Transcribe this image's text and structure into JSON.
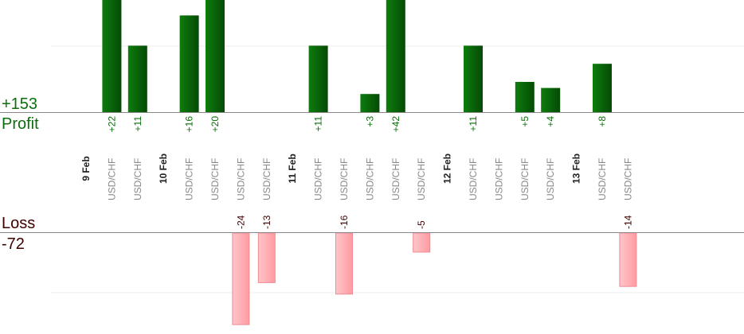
{
  "summary": {
    "profit_total": "+153",
    "profit_label": "Profit",
    "loss_label": "Loss",
    "loss_total": "-72"
  },
  "colors": {
    "profit_bar": "#0a6a0a",
    "profit_text": "#0b6e0b",
    "loss_bar": "#ffb3b8",
    "loss_text": "#3d0000",
    "axis": "#888888",
    "grid": "#eeeeee",
    "tick_text": "#888888",
    "date_text": "#222222"
  },
  "chart_data": {
    "type": "bar",
    "profit_ylim": [
      0,
      27
    ],
    "loss_ylim": [
      0,
      24
    ],
    "categories": [
      {
        "label": "9 Feb",
        "kind": "date"
      },
      {
        "label": "USD/CHF",
        "kind": "trade",
        "value": 22
      },
      {
        "label": "USD/CHF",
        "kind": "trade",
        "value": 11
      },
      {
        "label": "10 Feb",
        "kind": "date"
      },
      {
        "label": "USD/CHF",
        "kind": "trade",
        "value": 16
      },
      {
        "label": "USD/CHF",
        "kind": "trade",
        "value": 20
      },
      {
        "label": "USD/CHF",
        "kind": "trade",
        "value": -24
      },
      {
        "label": "USD/CHF",
        "kind": "trade",
        "value": -13
      },
      {
        "label": "11 Feb",
        "kind": "date"
      },
      {
        "label": "USD/CHF",
        "kind": "trade",
        "value": 11
      },
      {
        "label": "USD/CHF",
        "kind": "trade",
        "value": -16
      },
      {
        "label": "USD/CHF",
        "kind": "trade",
        "value": 3
      },
      {
        "label": "USD/CHF",
        "kind": "trade",
        "value": 42
      },
      {
        "label": "USD/CHF",
        "kind": "trade",
        "value": -5
      },
      {
        "label": "12 Feb",
        "kind": "date"
      },
      {
        "label": "USD/CHF",
        "kind": "trade",
        "value": 11
      },
      {
        "label": "USD/CHF",
        "kind": "trade",
        "value": null
      },
      {
        "label": "USD/CHF",
        "kind": "trade",
        "value": 5
      },
      {
        "label": "USD/CHF",
        "kind": "trade",
        "value": 4
      },
      {
        "label": "13 Feb",
        "kind": "date"
      },
      {
        "label": "USD/CHF",
        "kind": "trade",
        "value": 8
      },
      {
        "label": "USD/CHF",
        "kind": "trade",
        "value": -14
      }
    ]
  }
}
